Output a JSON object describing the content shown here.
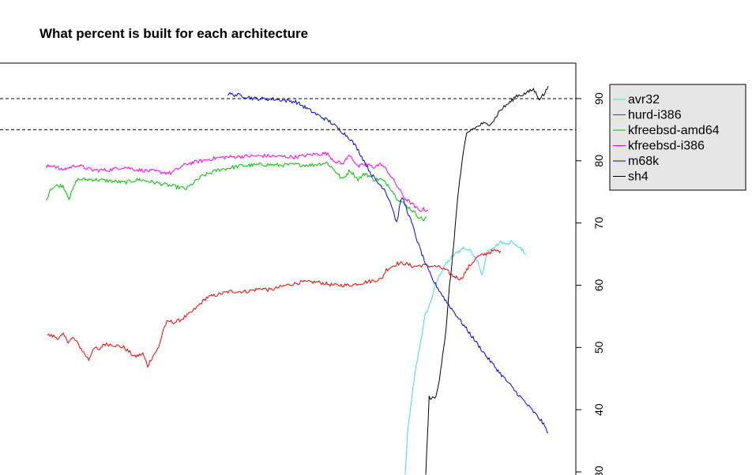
{
  "chart_data": {
    "type": "line",
    "title": "What percent is built for each architecture",
    "xlabel": "",
    "ylabel": "",
    "y_axis_side": "right",
    "y_ticks": [
      30,
      40,
      50,
      60,
      70,
      80,
      90
    ],
    "ylim": [
      29.5,
      95.7
    ],
    "x_index_range": [
      0,
      1000
    ],
    "reference_lines": [
      90,
      85
    ],
    "legend_position": "right",
    "legend_background": "#e6e6e6",
    "series": [
      {
        "name": "avr32",
        "color": "#40e0d0",
        "x": [
          0,
          4,
          12,
          20,
          28,
          36,
          45,
          55,
          62,
          70,
          80,
          90,
          98,
          106,
          120,
          132,
          140,
          150,
          162,
          175,
          185,
          195,
          200,
          205,
          210,
          220
        ],
        "y": [
          29.5,
          36,
          42,
          47,
          51,
          55,
          57,
          60,
          61.5,
          63,
          64,
          65,
          65.5,
          66,
          65.5,
          64,
          61.5,
          65.5,
          66,
          67,
          66.5,
          67,
          66.5,
          66,
          66,
          65
        ]
      },
      {
        "name": "hurd-i386",
        "color": "#ff0000",
        "x": [
          0,
          8,
          14,
          20,
          26,
          32,
          36,
          44,
          52,
          58,
          66,
          70,
          80,
          96,
          110,
          120,
          126,
          132,
          140,
          146,
          150,
          154,
          160,
          168,
          180,
          200,
          214,
          230,
          250,
          270,
          280,
          300,
          320,
          340,
          360,
          380,
          400,
          420,
          426,
          440,
          450,
          460,
          470,
          490,
          500,
          510,
          520,
          530,
          540,
          550,
          560,
          570
        ],
        "y": [
          52,
          51.8,
          51.5,
          52,
          51,
          51.5,
          51,
          49.5,
          48,
          50,
          49.5,
          50.5,
          50.5,
          50,
          48.5,
          49,
          47,
          48.5,
          50,
          53,
          54,
          54.2,
          54,
          54.5,
          55.5,
          58,
          58.5,
          59,
          59,
          59.5,
          59.2,
          60,
          60.5,
          60.5,
          60,
          60,
          60.5,
          61,
          62.5,
          63.5,
          63.5,
          63,
          63.2,
          63,
          62.5,
          61.5,
          61,
          63,
          64.5,
          65,
          65.5,
          65.5
        ]
      },
      {
        "name": "kfreebsd-amd64",
        "color": "#00c000",
        "x": [
          0,
          6,
          14,
          22,
          30,
          40,
          60,
          80,
          100,
          120,
          140,
          160,
          180,
          200,
          220,
          250,
          280,
          300,
          320,
          340,
          360,
          370,
          380,
          390,
          400,
          410,
          420,
          430,
          440,
          450,
          460,
          470,
          478,
          484,
          488
        ],
        "y": [
          73.5,
          75.5,
          76,
          76,
          74,
          77,
          77,
          76.8,
          76.5,
          77,
          76.5,
          76,
          75.5,
          77.5,
          78.5,
          79.2,
          79.4,
          79.3,
          79.4,
          79.3,
          79.7,
          78.5,
          77,
          78.5,
          77,
          78,
          77,
          77,
          76,
          74,
          73,
          72,
          71,
          70.5,
          71
        ]
      },
      {
        "name": "kfreebsd-i386",
        "color": "#ff00ff",
        "x": [
          0,
          10,
          20,
          40,
          60,
          80,
          100,
          120,
          140,
          160,
          180,
          200,
          220,
          250,
          280,
          300,
          320,
          340,
          360,
          370,
          380,
          390,
          400,
          410,
          420,
          430,
          440,
          450,
          460,
          470,
          478,
          484,
          490
        ],
        "y": [
          79,
          79.3,
          78.5,
          79.3,
          78.5,
          78.5,
          79,
          78.5,
          78.3,
          78,
          79.5,
          80,
          80.5,
          80.7,
          80.8,
          80.7,
          80.6,
          81,
          81.2,
          80,
          79.5,
          81,
          79,
          79.5,
          79,
          79.5,
          78,
          76,
          74,
          73,
          72,
          72.2,
          72
        ]
      },
      {
        "name": "m68k",
        "color": "#0000ff",
        "x": [
          230,
          240,
          250,
          270,
          300,
          330,
          345,
          360,
          380,
          400,
          410,
          420,
          430,
          440,
          450,
          460,
          470,
          474,
          478,
          482,
          486,
          490,
          500,
          510,
          520,
          530,
          550,
          570,
          590,
          610,
          630,
          650,
          670,
          690,
          700
        ],
        "y": [
          90.8,
          90.6,
          90.5,
          90,
          89.9,
          89.5,
          88.5,
          87.5,
          86.3,
          84.5,
          83.5,
          82,
          80,
          78,
          76.5,
          75.5,
          73,
          71.5,
          70,
          72.5,
          74.2,
          73,
          70,
          66.5,
          63.5,
          61,
          57.5,
          54.5,
          51.5,
          48.5,
          45.8,
          43.2,
          40.7,
          38.2,
          36.3
        ]
      },
      {
        "name": "sh4",
        "color": "#000000",
        "x": [
          0,
          6,
          12,
          18,
          24,
          30,
          36,
          42,
          48,
          54,
          60,
          66,
          72,
          80,
          90,
          100,
          110,
          120,
          130,
          140,
          150,
          160,
          170,
          180,
          190,
          200,
          210,
          216
        ],
        "y": [
          29.5,
          42,
          41.8,
          42,
          45,
          49,
          53,
          60,
          65,
          72,
          77,
          81,
          84.3,
          85,
          85.4,
          86,
          85.8,
          86.5,
          88,
          88.8,
          89.5,
          90.5,
          90.6,
          91,
          91.5,
          90,
          90.8,
          92
        ]
      }
    ]
  }
}
